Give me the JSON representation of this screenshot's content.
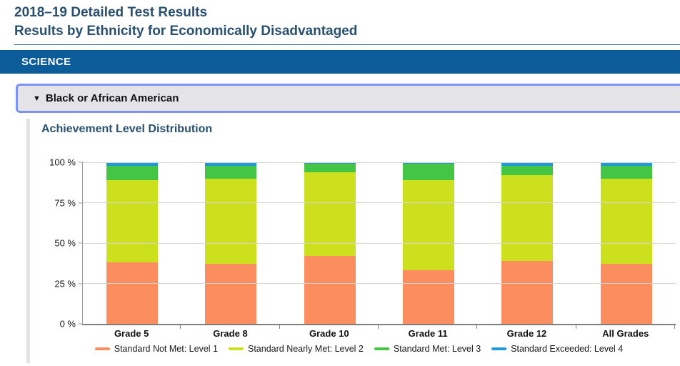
{
  "page": {
    "title_line1": "2018–19 Detailed Test Results",
    "title_line2": "Results by Ethnicity for Economically Disadvantaged"
  },
  "subject_banner": {
    "label": "SCIENCE"
  },
  "accordion": {
    "collapse_icon": "▼",
    "label": "Black or African American"
  },
  "section": {
    "heading": "Achievement Level Distribution"
  },
  "colors": {
    "title_text": "#2A506F",
    "banner_background": "#0B5C99",
    "accordion_background": "#E4E4E7",
    "accordion_focus_ring": "#7B93F5",
    "level1_orange": "#FC8D5E",
    "level2_yellow_green": "#CCE01D",
    "level3_green": "#45C545",
    "level4_blue": "#1C9BD7"
  },
  "chart_data": {
    "type": "bar",
    "stacked": true,
    "title": "Achievement Level Distribution",
    "xlabel": "",
    "ylabel": "",
    "ylim": [
      0,
      100
    ],
    "grid": true,
    "legend_position": "bottom",
    "categories": [
      "Grade 5",
      "Grade 8",
      "Grade 10",
      "Grade 11",
      "Grade 12",
      "All Grades"
    ],
    "ytick_values": [
      0,
      25,
      50,
      75,
      100
    ],
    "ytick_labels": [
      "0 %",
      "25 %",
      "50 %",
      "75 %",
      "100 %"
    ],
    "series": [
      {
        "name": "Standard Not Met: Level 1",
        "color": "#FC8D5E",
        "values": [
          38,
          37,
          42,
          33,
          39,
          37
        ]
      },
      {
        "name": "Standard Nearly Met: Level 2",
        "color": "#CCE01D",
        "values": [
          51,
          53,
          52,
          56,
          53,
          53
        ]
      },
      {
        "name": "Standard Met: Level 3",
        "color": "#45C545",
        "values": [
          9,
          8,
          5,
          10,
          6,
          8
        ]
      },
      {
        "name": "Standard Exceeded: Level 4",
        "color": "#1C9BD7",
        "values": [
          2,
          2,
          1,
          1,
          2,
          2
        ]
      }
    ]
  }
}
